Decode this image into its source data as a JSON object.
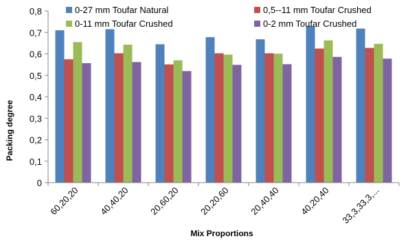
{
  "chart_data": {
    "type": "bar",
    "title": "",
    "xlabel": "Mix Proportions",
    "ylabel": "Packing degree",
    "ylim": [
      0,
      0.8
    ],
    "yticks": [
      "0",
      "0,1",
      "0,2",
      "0,3",
      "0,4",
      "0,5",
      "0,6",
      "0,7",
      "0,8"
    ],
    "grid": false,
    "legend_position": "top",
    "categories": [
      "60,20,20",
      "40,40,20",
      "20,60,20",
      "20,20,60",
      "20,40,40",
      "40,20,40",
      "33,3,33,3,..."
    ],
    "series": [
      {
        "name": "0-27 mm Toufar Natural",
        "color": "#4f81bd",
        "values": [
          0.71,
          0.715,
          0.645,
          0.678,
          0.668,
          0.73,
          0.718
        ]
      },
      {
        "name": "0,5--11 mm Toufar Crushed",
        "color": "#c0504d",
        "values": [
          0.575,
          0.603,
          0.551,
          0.603,
          0.603,
          0.625,
          0.628
        ]
      },
      {
        "name": "0-11 mm Toufar Crushed",
        "color": "#9bbb59",
        "values": [
          0.655,
          0.643,
          0.57,
          0.597,
          0.601,
          0.663,
          0.647
        ]
      },
      {
        "name": "0-2 mm Toufar Crushed",
        "color": "#8064a2",
        "values": [
          0.557,
          0.562,
          0.52,
          0.549,
          0.552,
          0.586,
          0.578
        ]
      }
    ]
  }
}
